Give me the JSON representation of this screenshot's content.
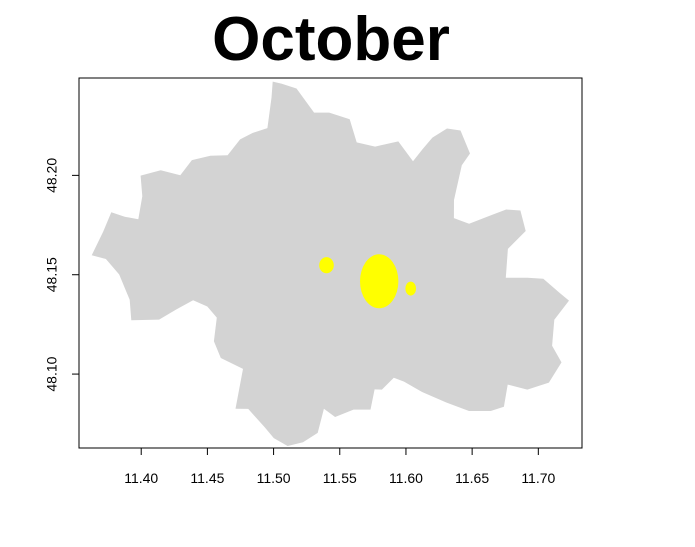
{
  "title": "October",
  "colors": {
    "land": "#d3d3d3",
    "highlight": "#ffff00",
    "frame": "#000000",
    "background": "#ffffff"
  },
  "axes": {
    "x_ticks": [
      "11.40",
      "11.45",
      "11.50",
      "11.55",
      "11.60",
      "11.65",
      "11.70"
    ],
    "x_tick_values": [
      11.4,
      11.45,
      11.5,
      11.55,
      11.6,
      11.65,
      11.7
    ],
    "y_ticks": [
      "48.10",
      "48.15",
      "48.20"
    ],
    "y_tick_values": [
      48.1,
      48.15,
      48.2
    ],
    "xlim": [
      11.353,
      11.733
    ],
    "ylim": [
      48.0628,
      48.249
    ]
  },
  "region_outline": [
    [
      11.4993,
      48.2472
    ],
    [
      11.5059,
      48.2462
    ],
    [
      11.5173,
      48.2437
    ],
    [
      11.5306,
      48.2316
    ],
    [
      11.542,
      48.2316
    ],
    [
      11.5575,
      48.2282
    ],
    [
      11.5628,
      48.2166
    ],
    [
      11.5767,
      48.2145
    ],
    [
      11.5942,
      48.2171
    ],
    [
      11.6053,
      48.2071
    ],
    [
      11.6125,
      48.2131
    ],
    [
      11.62,
      48.219
    ],
    [
      11.631,
      48.2236
    ],
    [
      11.6412,
      48.2226
    ],
    [
      11.6484,
      48.211
    ],
    [
      11.6422,
      48.2051
    ],
    [
      11.6363,
      48.1876
    ],
    [
      11.6362,
      48.1785
    ],
    [
      11.6477,
      48.1757
    ],
    [
      11.665,
      48.1801
    ],
    [
      11.6757,
      48.1828
    ],
    [
      11.6865,
      48.1823
    ],
    [
      11.6905,
      48.172
    ],
    [
      11.677,
      48.163
    ],
    [
      11.6754,
      48.1485
    ],
    [
      11.6918,
      48.1485
    ],
    [
      11.7038,
      48.148
    ],
    [
      11.7165,
      48.1406
    ],
    [
      11.7232,
      48.137
    ],
    [
      11.7121,
      48.1273
    ],
    [
      11.7104,
      48.1143
    ],
    [
      11.7175,
      48.1059
    ],
    [
      11.708,
      48.0957
    ],
    [
      11.6917,
      48.0922
    ],
    [
      11.6769,
      48.0947
    ],
    [
      11.674,
      48.0836
    ],
    [
      11.664,
      48.0814
    ],
    [
      11.6476,
      48.0814
    ],
    [
      11.6305,
      48.0857
    ],
    [
      11.6122,
      48.091
    ],
    [
      11.5985,
      48.0962
    ],
    [
      11.5908,
      48.0982
    ],
    [
      11.5818,
      48.0922
    ],
    [
      11.5763,
      48.0923
    ],
    [
      11.5732,
      48.0821
    ],
    [
      11.5604,
      48.0821
    ],
    [
      11.5465,
      48.0784
    ],
    [
      11.538,
      48.0826
    ],
    [
      11.5333,
      48.0704
    ],
    [
      11.5222,
      48.0657
    ],
    [
      11.5106,
      48.0638
    ],
    [
      11.5002,
      48.0678
    ],
    [
      11.4933,
      48.0732
    ],
    [
      11.4808,
      48.0825
    ],
    [
      11.4712,
      48.0826
    ],
    [
      11.4769,
      48.1026
    ],
    [
      11.4601,
      48.1081
    ],
    [
      11.4549,
      48.1165
    ],
    [
      11.4571,
      48.1284
    ],
    [
      11.4499,
      48.134
    ],
    [
      11.4392,
      48.1372
    ],
    [
      11.4264,
      48.1325
    ],
    [
      11.4135,
      48.1274
    ],
    [
      11.3925,
      48.1271
    ],
    [
      11.3913,
      48.1374
    ],
    [
      11.3834,
      48.1501
    ],
    [
      11.3733,
      48.1579
    ],
    [
      11.3626,
      48.1598
    ],
    [
      11.3713,
      48.1717
    ],
    [
      11.3774,
      48.1814
    ],
    [
      11.3875,
      48.1792
    ],
    [
      11.3978,
      48.1779
    ],
    [
      11.4008,
      48.1895
    ],
    [
      11.3995,
      48.1999
    ],
    [
      11.4147,
      48.2026
    ],
    [
      11.4295,
      48.2001
    ],
    [
      11.4383,
      48.2077
    ],
    [
      11.4523,
      48.2099
    ],
    [
      11.4653,
      48.2101
    ],
    [
      11.4747,
      48.2181
    ],
    [
      11.4841,
      48.2213
    ],
    [
      11.4953,
      48.2238
    ],
    [
      11.4984,
      48.2391
    ],
    [
      11.4993,
      48.2472
    ]
  ],
  "highlights": [
    {
      "lon": 11.5798,
      "lat": 48.1467,
      "rx": 0.0145,
      "ry": 0.0136
    },
    {
      "lon": 11.54,
      "lat": 48.1548,
      "rx": 0.0055,
      "ry": 0.0041
    },
    {
      "lon": 11.6036,
      "lat": 48.143,
      "rx": 0.004,
      "ry": 0.0035
    }
  ]
}
